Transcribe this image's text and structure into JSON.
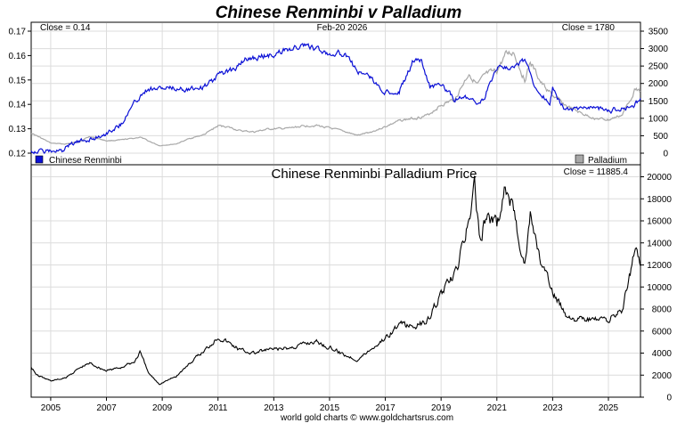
{
  "header": {
    "title": "Chinese Renminbi v Palladium",
    "date": "Feb-20  2026",
    "footer": "world gold charts © www.goldchartsrus.com"
  },
  "colors": {
    "title": "#1a1acc",
    "renminbi": "#0b10d6",
    "palladium": "#a8a8a8",
    "ratio": "#000000",
    "grid": "#dcdcdc"
  },
  "chart_data": [
    {
      "type": "line",
      "title": "",
      "close_left": "Close = 0.14",
      "close_right": "Close = 1780",
      "x_ticks": [
        "2005",
        "2007",
        "2009",
        "2011",
        "2013",
        "2015",
        "2017",
        "2019",
        "2021",
        "2023",
        "2025"
      ],
      "x_range": [
        2004.3,
        2026.15
      ],
      "y_left": {
        "ticks": [
          "0.12",
          "0.13",
          "0.14",
          "0.15",
          "0.16",
          "0.17"
        ],
        "range": [
          0.12,
          0.17
        ]
      },
      "y_right": {
        "ticks": [
          "0",
          "500",
          "1000",
          "1500",
          "2000",
          "2500",
          "3000",
          "3500"
        ],
        "range": [
          0,
          3500
        ]
      },
      "legend": [
        "Chinese Renminbi",
        "Palladium"
      ],
      "legend_placement": "bottom-left / bottom-right",
      "grid": true,
      "series": [
        {
          "name": "Chinese Renminbi",
          "axis": "left",
          "x": [
            2004.3,
            2005.5,
            2005.6,
            2006.0,
            2006.5,
            2007.0,
            2007.5,
            2008.0,
            2008.3,
            2008.5,
            2009.0,
            2009.5,
            2010.0,
            2010.5,
            2010.8,
            2011.0,
            2011.5,
            2012.0,
            2012.5,
            2013.0,
            2013.5,
            2014.0,
            2014.2,
            2014.5,
            2014.8,
            2015.0,
            2015.5,
            2015.7,
            2016.0,
            2016.5,
            2016.8,
            2017.0,
            2017.5,
            2018.0,
            2018.3,
            2018.6,
            2019.0,
            2019.5,
            2019.8,
            2020.0,
            2020.3,
            2020.5,
            2021.0,
            2021.5,
            2022.0,
            2022.3,
            2022.6,
            2022.9,
            2023.0,
            2023.3,
            2023.6,
            2023.9,
            2024.0,
            2024.5,
            2025.0,
            2025.5,
            2025.9,
            2026.15
          ],
          "values": [
            0.1208,
            0.1208,
            0.1233,
            0.1245,
            0.126,
            0.1282,
            0.1318,
            0.1405,
            0.1445,
            0.1465,
            0.1465,
            0.1465,
            0.1465,
            0.1472,
            0.1495,
            0.152,
            0.154,
            0.1585,
            0.1595,
            0.1605,
            0.1625,
            0.164,
            0.164,
            0.1625,
            0.1617,
            0.161,
            0.161,
            0.158,
            0.1538,
            0.1508,
            0.1465,
            0.1445,
            0.1455,
            0.158,
            0.1585,
            0.147,
            0.1487,
            0.1418,
            0.1432,
            0.1425,
            0.1405,
            0.1415,
            0.1547,
            0.1555,
            0.1578,
            0.1495,
            0.144,
            0.1402,
            0.1465,
            0.1395,
            0.1375,
            0.1382,
            0.1383,
            0.139,
            0.1372,
            0.1385,
            0.1395,
            0.1425
          ]
        },
        {
          "name": "Palladium",
          "axis": "right",
          "x": [
            2004.3,
            2005.0,
            2005.5,
            2006.0,
            2006.4,
            2007.0,
            2007.5,
            2008.0,
            2008.2,
            2008.5,
            2008.9,
            2009.5,
            2010.0,
            2010.5,
            2011.0,
            2011.3,
            2011.8,
            2012.3,
            2012.8,
            2013.5,
            2014.0,
            2014.5,
            2015.0,
            2015.5,
            2016.0,
            2016.5,
            2017.0,
            2017.5,
            2018.0,
            2018.5,
            2019.0,
            2019.5,
            2020.0,
            2020.3,
            2020.6,
            2021.0,
            2021.3,
            2021.6,
            2022.0,
            2022.2,
            2022.6,
            2023.0,
            2023.5,
            2024.0,
            2024.5,
            2025.0,
            2025.5,
            2026.0,
            2026.15
          ],
          "values": [
            580,
            290,
            260,
            325,
            480,
            355,
            375,
            430,
            460,
            350,
            215,
            265,
            425,
            530,
            785,
            765,
            640,
            610,
            690,
            710,
            770,
            800,
            720,
            630,
            510,
            610,
            760,
            930,
            1000,
            1080,
            1380,
            1550,
            2300,
            1950,
            2250,
            2350,
            2800,
            2900,
            2100,
            2600,
            2000,
            1650,
            1350,
            1150,
            1000,
            950,
            1100,
            1900,
            1780
          ]
        }
      ]
    },
    {
      "type": "line",
      "title": "Chinese Renminbi Palladium Price",
      "close_right": "Close = 11885.4",
      "x_ticks": [
        "2005",
        "2007",
        "2009",
        "2011",
        "2013",
        "2015",
        "2017",
        "2019",
        "2021",
        "2023",
        "2025"
      ],
      "x_range": [
        2004.3,
        2026.15
      ],
      "y_right": {
        "ticks": [
          "0",
          "2000",
          "4000",
          "6000",
          "8000",
          "10000",
          "12000",
          "14000",
          "16000",
          "18000",
          "20000"
        ],
        "range": [
          0,
          20000
        ]
      },
      "grid": true,
      "series": [
        {
          "name": "Chinese Renminbi Palladium Price",
          "x": [
            2004.3,
            2004.5,
            2005.0,
            2005.5,
            2006.0,
            2006.4,
            2007.0,
            2007.5,
            2008.0,
            2008.2,
            2008.5,
            2008.9,
            2009.5,
            2010.0,
            2010.5,
            2011.0,
            2011.3,
            2011.8,
            2012.3,
            2012.8,
            2013.5,
            2014.0,
            2014.5,
            2015.0,
            2015.5,
            2016.0,
            2016.5,
            2017.0,
            2017.5,
            2018.0,
            2018.5,
            2019.0,
            2019.5,
            2020.0,
            2020.2,
            2020.4,
            2020.6,
            2021.0,
            2021.3,
            2021.6,
            2022.0,
            2022.2,
            2022.6,
            2023.0,
            2023.5,
            2024.0,
            2024.5,
            2025.0,
            2025.5,
            2026.0,
            2026.15
          ],
          "values": [
            2800,
            2000,
            1500,
            1700,
            2600,
            3100,
            2400,
            2700,
            3200,
            4100,
            2200,
            1200,
            1900,
            3100,
            4200,
            5500,
            5100,
            4300,
            4000,
            4300,
            4400,
            4800,
            5100,
            4500,
            3900,
            3400,
            4400,
            5400,
            6600,
            6400,
            6900,
            9400,
            11000,
            16000,
            19000,
            14000,
            16500,
            15500,
            19000,
            17000,
            12000,
            16500,
            12000,
            9500,
            7500,
            7000,
            7000,
            7000,
            8000,
            14000,
            11885.4
          ]
        }
      ]
    }
  ]
}
